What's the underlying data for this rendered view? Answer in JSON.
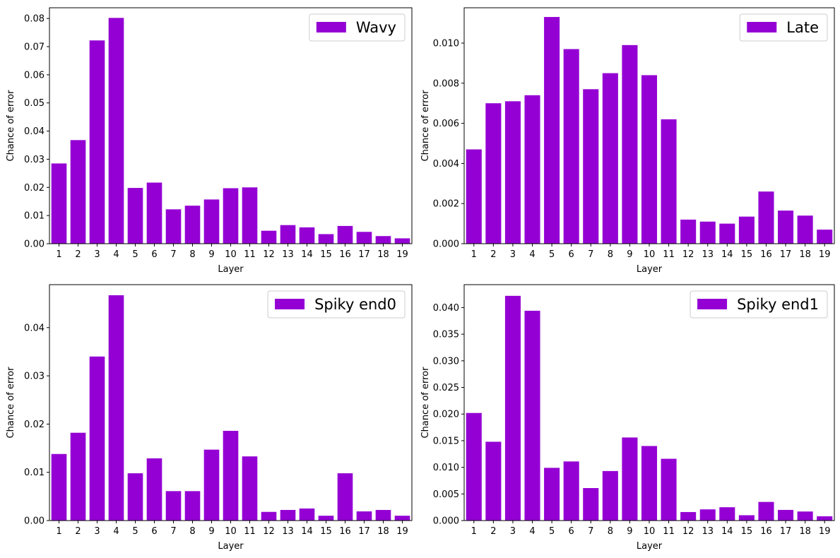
{
  "colors": {
    "bar": "#9400D3",
    "axis": "#000000",
    "legend_border": "#cccccc"
  },
  "chart_data": [
    {
      "type": "bar",
      "legend": "Wavy",
      "legend_position": "top-right",
      "xlabel": "Layer",
      "ylabel": "Chance of error",
      "ylim": [
        0,
        0.0838
      ],
      "yticks": [
        "0.00",
        "0.01",
        "0.02",
        "0.03",
        "0.04",
        "0.05",
        "0.06",
        "0.07",
        "0.08"
      ],
      "categories": [
        "1",
        "2",
        "3",
        "4",
        "5",
        "6",
        "7",
        "8",
        "9",
        "10",
        "11",
        "12",
        "13",
        "14",
        "15",
        "16",
        "17",
        "18",
        "19"
      ],
      "values": [
        0.0285,
        0.0368,
        0.0722,
        0.0802,
        0.0198,
        0.0217,
        0.0122,
        0.0135,
        0.0157,
        0.0197,
        0.02,
        0.0046,
        0.0066,
        0.0058,
        0.0034,
        0.0063,
        0.0042,
        0.0027,
        0.0019
      ]
    },
    {
      "type": "bar",
      "legend": "Late",
      "legend_position": "top-right",
      "xlabel": "Layer",
      "ylabel": "Chance of error",
      "ylim": [
        0,
        0.01176
      ],
      "yticks": [
        "0.000",
        "0.002",
        "0.004",
        "0.006",
        "0.008",
        "0.010"
      ],
      "categories": [
        "1",
        "2",
        "3",
        "4",
        "5",
        "6",
        "7",
        "8",
        "9",
        "10",
        "11",
        "12",
        "13",
        "14",
        "15",
        "16",
        "17",
        "18",
        "19"
      ],
      "values": [
        0.0047,
        0.007,
        0.0071,
        0.0074,
        0.0113,
        0.0097,
        0.0077,
        0.0085,
        0.0099,
        0.0084,
        0.0062,
        0.0012,
        0.0011,
        0.001,
        0.00135,
        0.0026,
        0.00165,
        0.0014,
        0.0007
      ]
    },
    {
      "type": "bar",
      "legend": "Spiky end0",
      "legend_position": "top-right",
      "xlabel": "Layer",
      "ylabel": "Chance of error",
      "ylim": [
        0,
        0.0489
      ],
      "yticks": [
        "0.00",
        "0.01",
        "0.02",
        "0.03",
        "0.04"
      ],
      "categories": [
        "1",
        "2",
        "3",
        "4",
        "5",
        "6",
        "7",
        "8",
        "9",
        "10",
        "11",
        "12",
        "13",
        "14",
        "15",
        "16",
        "17",
        "18",
        "19"
      ],
      "values": [
        0.0138,
        0.0182,
        0.034,
        0.0467,
        0.0098,
        0.0129,
        0.0061,
        0.0061,
        0.0147,
        0.0186,
        0.0133,
        0.0018,
        0.0022,
        0.0025,
        0.001,
        0.0098,
        0.0019,
        0.0022,
        0.001
      ]
    },
    {
      "type": "bar",
      "legend": "Spiky end1",
      "legend_position": "top-right",
      "xlabel": "Layer",
      "ylabel": "Chance of error",
      "ylim": [
        0,
        0.0443
      ],
      "yticks": [
        "0.000",
        "0.005",
        "0.010",
        "0.015",
        "0.020",
        "0.025",
        "0.030",
        "0.035",
        "0.040"
      ],
      "categories": [
        "1",
        "2",
        "3",
        "4",
        "5",
        "6",
        "7",
        "8",
        "9",
        "10",
        "11",
        "12",
        "13",
        "14",
        "15",
        "16",
        "17",
        "18",
        "19"
      ],
      "values": [
        0.0202,
        0.0148,
        0.0422,
        0.0394,
        0.0099,
        0.0111,
        0.0061,
        0.0093,
        0.0156,
        0.014,
        0.0116,
        0.0016,
        0.0021,
        0.0025,
        0.001,
        0.0035,
        0.002,
        0.0017,
        0.0008
      ]
    }
  ]
}
